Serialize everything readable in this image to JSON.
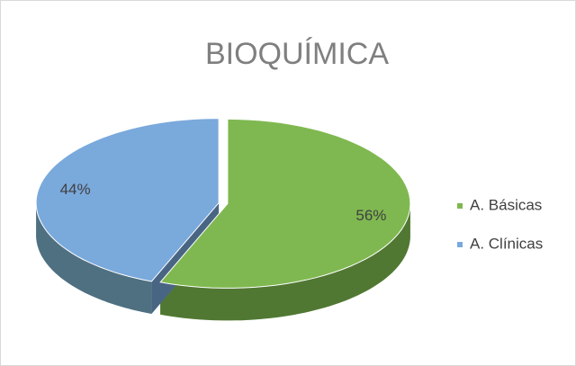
{
  "chart_data": {
    "type": "pie",
    "title": "BIOQUÍMICA",
    "categories": [
      "A. Básicas",
      "A. Clínicas"
    ],
    "values": [
      56,
      44
    ],
    "value_labels": [
      "56%",
      "44%"
    ],
    "colors": [
      "#7fb850",
      "#7aa9dc"
    ],
    "legend": "right"
  }
}
